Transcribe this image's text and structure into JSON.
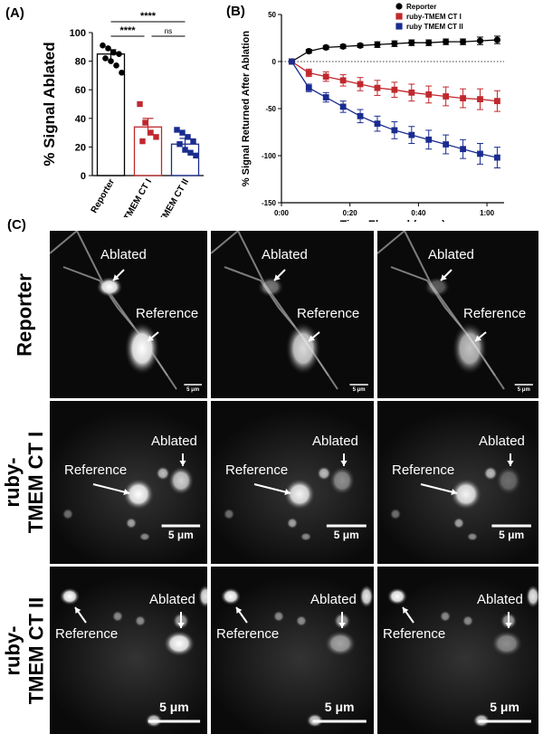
{
  "panel_labels": {
    "a": "(A)",
    "b": "(B)",
    "c": "(C)"
  },
  "chart_a": {
    "type": "bar",
    "ylabel": "% Signal Ablated",
    "ylim": [
      0,
      100
    ],
    "yticks": [
      "0",
      "20",
      "40",
      "60",
      "80",
      "100"
    ],
    "categories": [
      "Reporter",
      "ruby-TMEM CT I",
      "ruby-TMEM CT II"
    ],
    "means": [
      85,
      34,
      22
    ],
    "sem": [
      3,
      6,
      4
    ],
    "points": [
      [
        91,
        89,
        86,
        85,
        82,
        80,
        77,
        72
      ],
      [
        50,
        37,
        30,
        27,
        24
      ],
      [
        32,
        30,
        27,
        24,
        22,
        18,
        16,
        14
      ]
    ],
    "colors": [
      "#000000",
      "#c0282d",
      "#1a2c8f"
    ],
    "significance": [
      {
        "from": 0,
        "to": 2,
        "label": "****"
      },
      {
        "from": 0,
        "to": 1,
        "label": "****"
      },
      {
        "from": 1,
        "to": 2,
        "label": "ns"
      }
    ]
  },
  "chart_b": {
    "type": "line",
    "ylabel": "% Signal Returned After Ablation",
    "xlabel": "Time Elapsed (m:ss)",
    "ylim": [
      -150,
      50
    ],
    "yticks": [
      "-150",
      "-100",
      "-50",
      "0",
      "50"
    ],
    "xlim": [
      0,
      65
    ],
    "xticks": [
      {
        "t": 0,
        "label": "0:00"
      },
      {
        "t": 20,
        "label": "0:20"
      },
      {
        "t": 40,
        "label": "0:40"
      },
      {
        "t": 60,
        "label": "1:00"
      }
    ],
    "x": [
      3,
      8,
      13,
      18,
      23,
      28,
      33,
      38,
      43,
      48,
      53,
      58,
      63
    ],
    "series": [
      {
        "name": "Reporter",
        "color": "#000000",
        "marker": "circle",
        "values": [
          0,
          11,
          15,
          16,
          17,
          18,
          19,
          20,
          20,
          21,
          21,
          22,
          23
        ],
        "err": [
          1,
          2,
          2,
          2,
          2,
          3,
          3,
          3,
          3,
          3,
          3,
          4,
          4
        ]
      },
      {
        "name": "ruby-TMEM CT I",
        "color": "#c0282d",
        "marker": "square",
        "values": [
          0,
          -12,
          -16,
          -20,
          -24,
          -28,
          -30,
          -33,
          -35,
          -37,
          -39,
          -40,
          -42
        ],
        "err": [
          1,
          4,
          5,
          6,
          7,
          8,
          8,
          9,
          9,
          10,
          10,
          11,
          11
        ]
      },
      {
        "name": "ruby TMEM CT II",
        "color": "#1a2c8f",
        "marker": "square",
        "values": [
          0,
          -28,
          -38,
          -48,
          -58,
          -66,
          -73,
          -78,
          -83,
          -88,
          -93,
          -98,
          -102
        ],
        "err": [
          1,
          4,
          5,
          6,
          7,
          8,
          9,
          9,
          10,
          10,
          10,
          11,
          11
        ]
      }
    ]
  },
  "panel_c": {
    "rows": [
      {
        "label_lines": [
          "Reporter"
        ],
        "annotations": [
          "Ablated",
          "Reference"
        ],
        "scale_label": "5 μm"
      },
      {
        "label_lines": [
          "ruby-",
          "TMEM CT I"
        ],
        "annotations": [
          "Ablated",
          "Reference"
        ],
        "scale_label": "5 μm"
      },
      {
        "label_lines": [
          "ruby-",
          "TMEM CT II"
        ],
        "annotations": [
          "Ablated",
          "Reference"
        ],
        "scale_label": "5 μm"
      }
    ]
  }
}
